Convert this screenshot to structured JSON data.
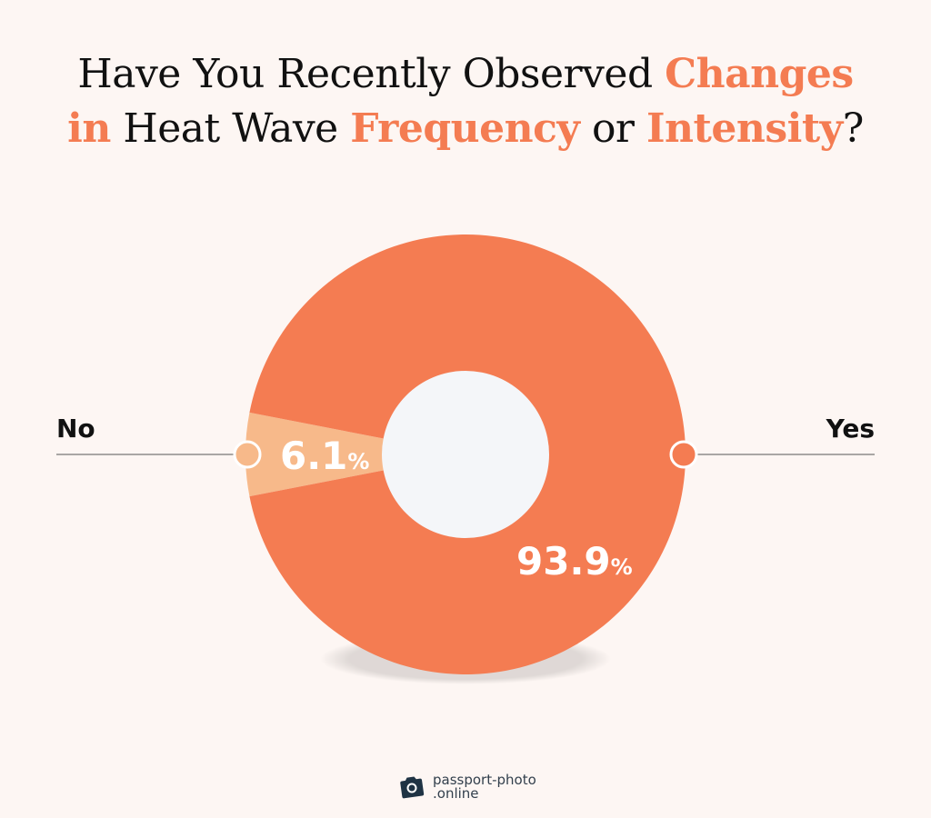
{
  "title": {
    "parts": [
      {
        "text": "Have You Recently Observed ",
        "highlight": false
      },
      {
        "text": "Changes",
        "highlight": true
      },
      {
        "text": "in",
        "highlight": true
      },
      {
        "text": " Heat Wave ",
        "highlight": false
      },
      {
        "text": "Frequency",
        "highlight": true
      },
      {
        "text": " or ",
        "highlight": false
      },
      {
        "text": "Intensity",
        "highlight": true
      },
      {
        "text": "?",
        "highlight": false
      }
    ]
  },
  "chart_data": {
    "type": "pie",
    "variant": "donut",
    "title": "Have You Recently Observed Changes in Heat Wave Frequency or Intensity?",
    "categories": [
      "No",
      "Yes"
    ],
    "values": [
      6.1,
      93.9
    ],
    "data_labels": [
      "6.1",
      "93.9"
    ],
    "unit": "%",
    "colors": [
      "#f7b98a",
      "#f47c52"
    ],
    "legend": "side-labels"
  },
  "colors": {
    "accent": "#f47c52",
    "background": "#fdf6f3",
    "hole": "#f4f6f9"
  },
  "logo": {
    "line1": "passport-photo",
    "line2": ".online",
    "icon": "camera-icon"
  }
}
